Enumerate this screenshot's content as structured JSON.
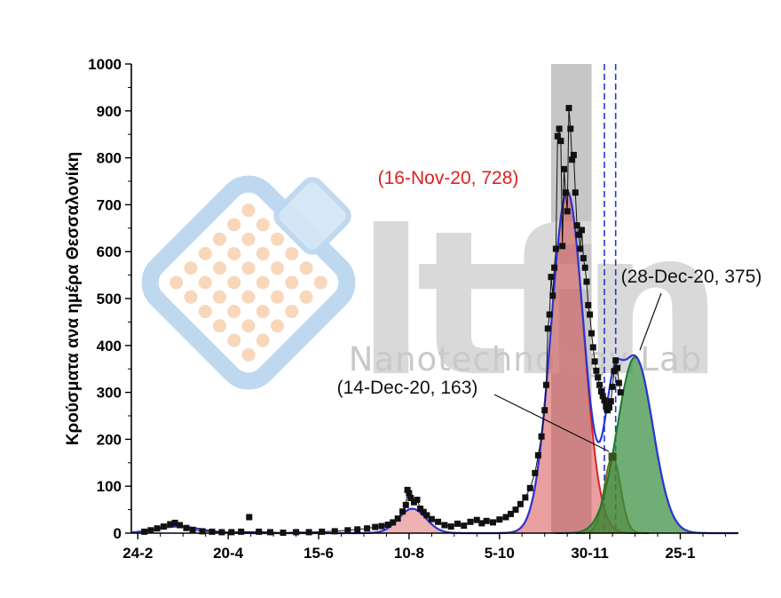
{
  "watermark": {
    "logo_text": "ltfn",
    "subtitle": "Nanotechnology Lab"
  },
  "chart_data": {
    "type": "line",
    "title": "",
    "xlabel": "",
    "ylabel": "Κρούσματα ανα ημέρα Θεσσαλονίκη",
    "ylim": [
      0,
      1000
    ],
    "x_unit": "days since 24-Feb-2020",
    "grid": false,
    "legend": "none",
    "x_ticks": [
      {
        "day": 0,
        "label": "24-2"
      },
      {
        "day": 56,
        "label": "20-4"
      },
      {
        "day": 112,
        "label": "15-6"
      },
      {
        "day": 168,
        "label": "10-8"
      },
      {
        "day": 224,
        "label": "5-10"
      },
      {
        "day": 280,
        "label": "30-11"
      },
      {
        "day": 336,
        "label": "25-1"
      }
    ],
    "y_ticks": [
      0,
      100,
      200,
      300,
      400,
      500,
      600,
      700,
      800,
      900,
      1000
    ],
    "scatter": {
      "name": "daily-cases",
      "marker": "black-square",
      "points": [
        [
          4,
          3
        ],
        [
          8,
          6
        ],
        [
          12,
          10
        ],
        [
          16,
          14
        ],
        [
          20,
          19
        ],
        [
          23,
          22
        ],
        [
          26,
          17
        ],
        [
          30,
          11
        ],
        [
          34,
          7
        ],
        [
          40,
          4
        ],
        [
          46,
          3
        ],
        [
          52,
          2
        ],
        [
          58,
          2
        ],
        [
          64,
          3
        ],
        [
          69,
          34
        ],
        [
          75,
          3
        ],
        [
          82,
          2
        ],
        [
          90,
          1
        ],
        [
          98,
          2
        ],
        [
          106,
          2
        ],
        [
          114,
          3
        ],
        [
          122,
          4
        ],
        [
          130,
          6
        ],
        [
          136,
          8
        ],
        [
          142,
          10
        ],
        [
          147,
          13
        ],
        [
          151,
          15
        ],
        [
          155,
          18
        ],
        [
          158,
          23
        ],
        [
          161,
          31
        ],
        [
          164,
          46
        ],
        [
          166,
          60
        ],
        [
          167,
          92
        ],
        [
          168,
          85
        ],
        [
          169,
          75
        ],
        [
          171,
          66
        ],
        [
          173,
          71
        ],
        [
          175,
          52
        ],
        [
          177,
          45
        ],
        [
          179,
          38
        ],
        [
          182,
          30
        ],
        [
          186,
          24
        ],
        [
          190,
          17
        ],
        [
          194,
          14
        ],
        [
          198,
          20
        ],
        [
          202,
          16
        ],
        [
          206,
          24
        ],
        [
          210,
          28
        ],
        [
          213,
          21
        ],
        [
          216,
          26
        ],
        [
          220,
          23
        ],
        [
          224,
          29
        ],
        [
          228,
          34
        ],
        [
          231,
          41
        ],
        [
          234,
          50
        ],
        [
          237,
          62
        ],
        [
          240,
          76
        ],
        [
          243,
          96
        ],
        [
          246,
          128
        ],
        [
          248,
          166
        ],
        [
          250,
          206
        ],
        [
          252,
          262
        ],
        [
          253,
          316
        ],
        [
          254,
          436
        ],
        [
          255,
          466
        ],
        [
          256,
          546
        ],
        [
          257,
          506
        ],
        [
          258,
          566
        ],
        [
          259,
          606
        ],
        [
          260,
          846
        ],
        [
          261,
          862
        ],
        [
          262,
          836
        ],
        [
          263,
          612
        ],
        [
          264,
          776
        ],
        [
          265,
          726
        ],
        [
          266,
          686
        ],
        [
          267,
          906
        ],
        [
          268,
          862
        ],
        [
          269,
          796
        ],
        [
          270,
          806
        ],
        [
          271,
          726
        ],
        [
          272,
          656
        ],
        [
          273,
          636
        ],
        [
          274,
          606
        ],
        [
          275,
          646
        ],
        [
          276,
          586
        ],
        [
          277,
          566
        ],
        [
          278,
          536
        ],
        [
          279,
          486
        ],
        [
          280,
          466
        ],
        [
          281,
          426
        ],
        [
          282,
          396
        ],
        [
          283,
          366
        ],
        [
          284,
          346
        ],
        [
          285,
          332
        ],
        [
          286,
          316
        ],
        [
          287,
          302
        ],
        [
          288,
          292
        ],
        [
          289,
          283
        ],
        [
          290,
          270
        ],
        [
          291,
          262
        ],
        [
          292,
          268
        ],
        [
          293,
          281
        ],
        [
          294,
          312
        ],
        [
          295,
          345
        ],
        [
          296,
          368
        ],
        [
          297,
          352
        ],
        [
          298,
          320
        ],
        [
          299,
          300
        ]
      ]
    },
    "baseline_component": {
      "name": "spring-wave",
      "center_day": 25,
      "amplitude": 14,
      "sigma": 14
    },
    "fit_components": [
      {
        "name": "summer-wave",
        "center_day": 170,
        "amplitude": 52,
        "sigma": 8.5,
        "fill": "rgba(212,63,63,0.40)",
        "stroke": "#dd2222"
      },
      {
        "name": "wave-2",
        "peak_date": "16-Nov-20",
        "center_day": 266,
        "amplitude": 728,
        "sigma": 10,
        "fill": "rgba(212,63,63,0.50)",
        "stroke": "#dd2222"
      },
      {
        "name": "wave-2b",
        "peak_date": "14-Dec-20",
        "center_day": 294,
        "amplitude": 163,
        "sigma": 5,
        "fill": "rgba(128,108,30,0.55)",
        "stroke": "#6b6b1e"
      },
      {
        "name": "wave-3",
        "peak_date": "28-Dec-20",
        "center_day": 308,
        "amplitude": 375,
        "sigma": 11,
        "fill": "rgba(52,140,60,0.70)",
        "stroke": "#1d7a2a"
      }
    ],
    "envelope_color": "#2a35d8",
    "lockdown_band": {
      "start_day": 256,
      "end_day": 281,
      "color": "#c6c6c6"
    },
    "dashed_lines": {
      "days": [
        289,
        296
      ],
      "color": "#2438d4"
    },
    "annotations": [
      {
        "text": "(16-Nov-20, 728)",
        "color": "#e02020",
        "target_day": 266,
        "target_value": 728
      },
      {
        "text": "(14-Dec-20, 163)",
        "color": "#111111",
        "target_day": 294,
        "target_value": 163
      },
      {
        "text": "(28-Dec-20, 375)",
        "color": "#111111",
        "target_day": 308,
        "target_value": 375
      }
    ],
    "special_marker": {
      "day": 294,
      "value": 163,
      "color": "#33551a"
    }
  }
}
